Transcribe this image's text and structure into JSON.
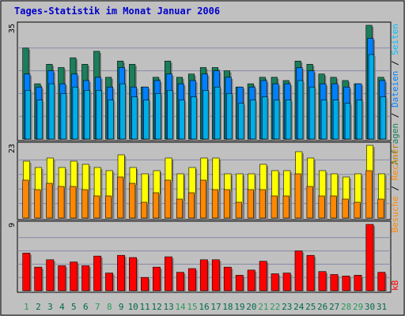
{
  "colors": {
    "background": "#c0c0c0",
    "frame": "#000000",
    "title": "#0000cc",
    "grid": "#8888a8",
    "requests": "#1a7f5a",
    "files": "#0080ff",
    "pages": "#00c0ff",
    "visits": "#ffff00",
    "sites": "#ff8800",
    "kbytes": "#ff0000",
    "day_weekday": "#006a4a",
    "day_weekend": "#2a9a5a"
  },
  "chart_data": {
    "type": "bar",
    "title": "Tages-Statistik im Monat Januar 2006",
    "categories": [
      "1",
      "2",
      "3",
      "4",
      "5",
      "6",
      "7",
      "8",
      "9",
      "10",
      "11",
      "12",
      "13",
      "14",
      "15",
      "16",
      "17",
      "18",
      "19",
      "20",
      "21",
      "22",
      "23",
      "24",
      "25",
      "26",
      "27",
      "28",
      "29",
      "30",
      "31"
    ],
    "weekend_days": [
      "1",
      "7",
      "8",
      "14",
      "15",
      "21",
      "22",
      "28",
      "29"
    ],
    "panels": [
      {
        "id": "hits",
        "max_label": "35",
        "ylim": [
          0,
          35
        ],
        "legend": [
          "Anfragen",
          "Dateien",
          "Seiten"
        ],
        "series": [
          {
            "name": "Anfragen",
            "values": [
              28,
              17,
              23,
              22,
              25,
              23,
              27,
              19,
              24,
              23,
              16,
              19,
              24,
              19,
              20,
              22,
              22,
              21,
              16,
              17,
              19,
              19,
              18,
              24,
              23,
              20,
              19,
              18,
              17,
              35,
              19
            ]
          },
          {
            "name": "Dateien",
            "values": [
              20,
              16,
              21,
              17,
              20,
              18,
              19,
              16,
              22,
              16,
              16,
              18,
              20,
              17,
              18,
              20,
              21,
              19,
              16,
              16,
              18,
              17,
              17,
              22,
              21,
              17,
              17,
              16,
              17,
              31,
              18
            ]
          },
          {
            "name": "Seiten",
            "values": [
              15,
              12,
              17,
              14,
              16,
              15,
              15,
              12,
              17,
              13,
              12,
              14,
              15,
              12,
              13,
              15,
              16,
              14,
              11,
              12,
              13,
              12,
              12,
              18,
              16,
              12,
              12,
              11,
              12,
              26,
              13
            ]
          }
        ]
      },
      {
        "id": "visits",
        "max_label": "23",
        "ylim": [
          0,
          23
        ],
        "legend": [
          "Besuche",
          "Rechner"
        ],
        "series": [
          {
            "name": "Besuche",
            "values": [
              18,
              16,
              19,
              16,
              18,
              17,
              16,
              15,
              20,
              16,
              14,
              15,
              19,
              14,
              16,
              19,
              19,
              14,
              14,
              14,
              17,
              15,
              15,
              21,
              19,
              15,
              14,
              13,
              14,
              23,
              14
            ]
          },
          {
            "name": "Rechner",
            "values": [
              12,
              9,
              11,
              10,
              10,
              9,
              7,
              7,
              13,
              11,
              5,
              8,
              12,
              6,
              8,
              12,
              9,
              9,
              5,
              9,
              9,
              7,
              7,
              14,
              10,
              7,
              7,
              6,
              5,
              15,
              6
            ]
          }
        ]
      },
      {
        "id": "kbytes",
        "max_label": "9",
        "ylim": [
          0,
          9
        ],
        "legend": [
          "kB"
        ],
        "series": [
          {
            "name": "kB",
            "values": [
              5.1,
              3.2,
              4.2,
              3.4,
              3.9,
              3.4,
              4.7,
              2.4,
              4.8,
              4.5,
              1.8,
              3.2,
              4.6,
              2.5,
              3.0,
              4.2,
              4.2,
              3.2,
              2.1,
              2.8,
              4.0,
              2.3,
              2.4,
              5.4,
              4.8,
              2.6,
              2.2,
              2.0,
              2.1,
              9.0,
              2.5
            ]
          }
        ]
      }
    ]
  }
}
